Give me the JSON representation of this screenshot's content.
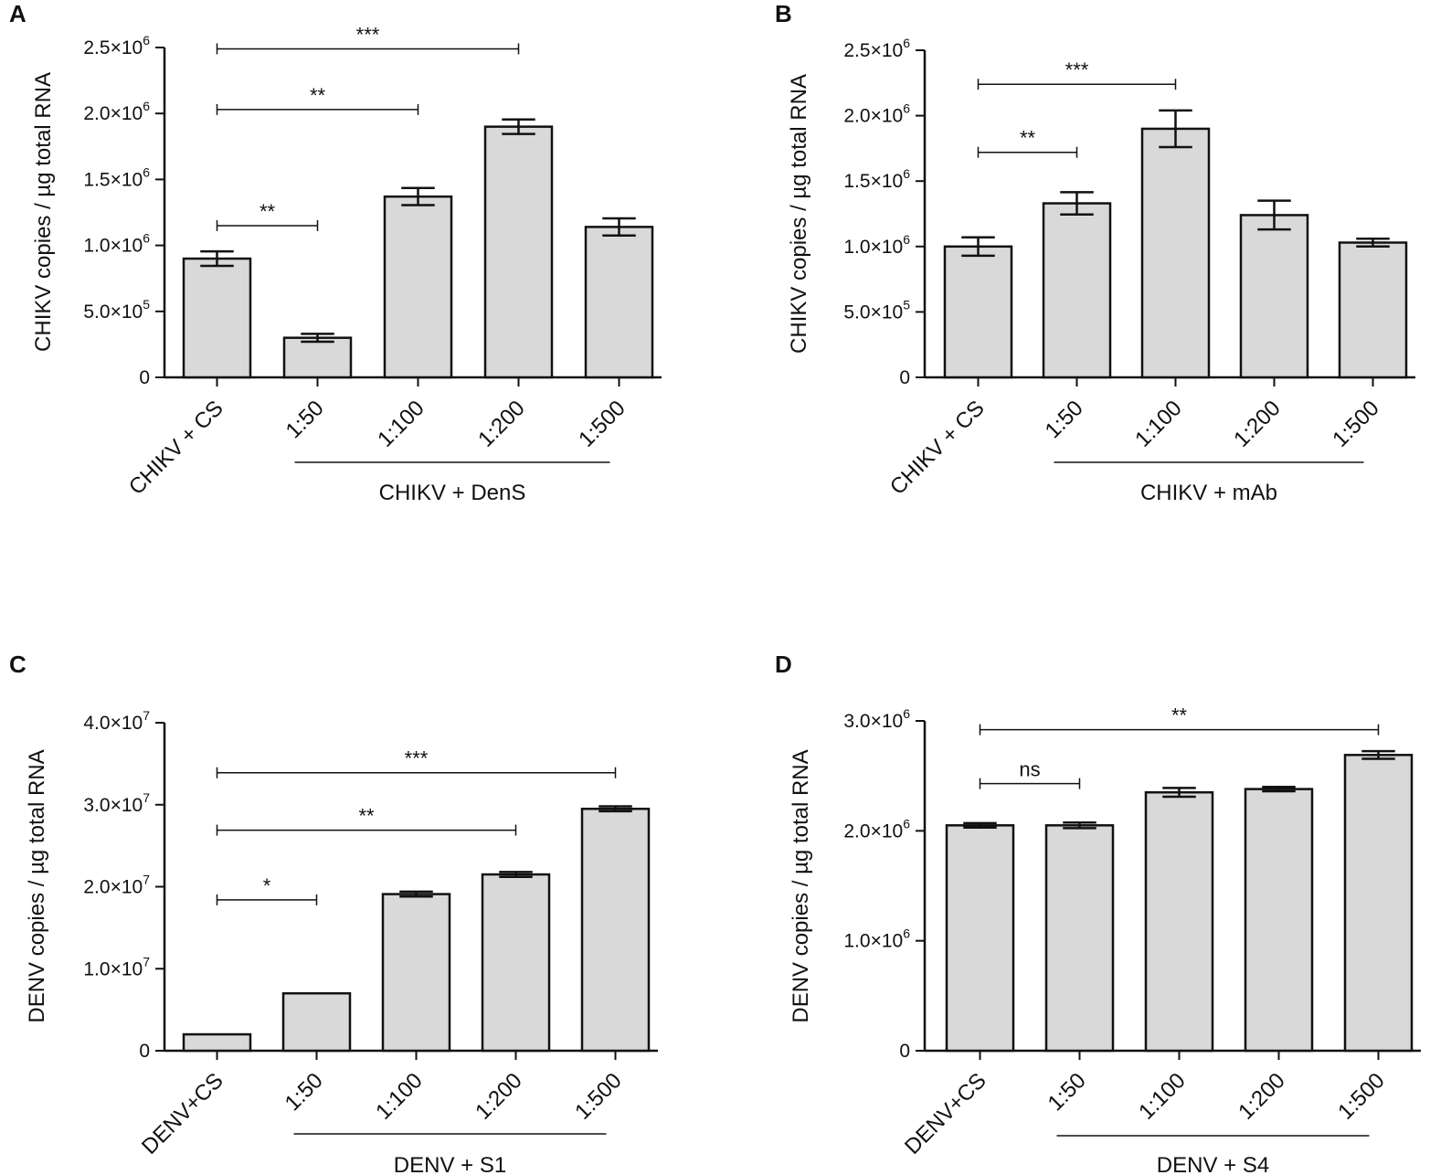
{
  "chart_data": [
    {
      "panel": "A",
      "type": "bar",
      "ylabel": "CHIKV copies / µg total RNA",
      "ylim": [
        0,
        2500000
      ],
      "yticks": [
        {
          "value": 0,
          "mant": "0",
          "exp": ""
        },
        {
          "value": 500000,
          "mant": "5.0×10",
          "exp": "5"
        },
        {
          "value": 1000000,
          "mant": "1.0×10",
          "exp": "6"
        },
        {
          "value": 1500000,
          "mant": "1.5×10",
          "exp": "6"
        },
        {
          "value": 2000000,
          "mant": "2.0×10",
          "exp": "6"
        },
        {
          "value": 2500000,
          "mant": "2.5×10",
          "exp": "6"
        }
      ],
      "categories": [
        "CHIKV + CS",
        "1:50",
        "1:100",
        "1:200",
        "1:500"
      ],
      "values": [
        900000,
        300000,
        1370000,
        1900000,
        1140000
      ],
      "errors": [
        55000,
        30000,
        65000,
        55000,
        65000
      ],
      "group_label": "CHIKV + DenS",
      "group_range": [
        1,
        4
      ],
      "significance": [
        {
          "from": 0,
          "to": 1,
          "label": "**",
          "y": 1150000
        },
        {
          "from": 0,
          "to": 2,
          "label": "**",
          "y": 2030000
        },
        {
          "from": 0,
          "to": 3,
          "label": "***",
          "y": 2490000
        }
      ]
    },
    {
      "panel": "B",
      "type": "bar",
      "ylabel": "CHIKV copies / µg total RNA",
      "ylim": [
        0,
        2500000
      ],
      "yticks": [
        {
          "value": 0,
          "mant": "0",
          "exp": ""
        },
        {
          "value": 500000,
          "mant": "5.0×10",
          "exp": "5"
        },
        {
          "value": 1000000,
          "mant": "1.0×10",
          "exp": "6"
        },
        {
          "value": 1500000,
          "mant": "1.5×10",
          "exp": "6"
        },
        {
          "value": 2000000,
          "mant": "2.0×10",
          "exp": "6"
        },
        {
          "value": 2500000,
          "mant": "2.5×10",
          "exp": "6"
        }
      ],
      "categories": [
        "CHIKV + CS",
        "1:50",
        "1:100",
        "1:200",
        "1:500"
      ],
      "values": [
        1000000,
        1330000,
        1900000,
        1240000,
        1030000
      ],
      "errors": [
        70000,
        85000,
        140000,
        110000,
        30000
      ],
      "group_label": "CHIKV + mAb",
      "group_range": [
        1,
        4
      ],
      "significance": [
        {
          "from": 0,
          "to": 1,
          "label": "**",
          "y": 1720000
        },
        {
          "from": 0,
          "to": 2,
          "label": "***",
          "y": 2240000
        }
      ]
    },
    {
      "panel": "C",
      "type": "bar",
      "ylabel": "DENV copies / µg total RNA",
      "ylim": [
        0,
        40000000
      ],
      "yticks": [
        {
          "value": 0,
          "mant": "0",
          "exp": ""
        },
        {
          "value": 10000000,
          "mant": "1.0×10",
          "exp": "7"
        },
        {
          "value": 20000000,
          "mant": "2.0×10",
          "exp": "7"
        },
        {
          "value": 30000000,
          "mant": "3.0×10",
          "exp": "7"
        },
        {
          "value": 40000000,
          "mant": "4.0×10",
          "exp": "7"
        }
      ],
      "categories": [
        "DENV+CS",
        "1:50",
        "1:100",
        "1:200",
        "1:500"
      ],
      "values": [
        2000000,
        7000000,
        19100000,
        21500000,
        29500000
      ],
      "errors": [
        0,
        0,
        300000,
        300000,
        300000
      ],
      "group_label": "DENV + S1",
      "group_range": [
        1,
        4
      ],
      "significance": [
        {
          "from": 0,
          "to": 1,
          "label": "*",
          "y": 18400000
        },
        {
          "from": 0,
          "to": 3,
          "label": "**",
          "y": 26900000
        },
        {
          "from": 0,
          "to": 4,
          "label": "***",
          "y": 33900000
        }
      ]
    },
    {
      "panel": "D",
      "type": "bar",
      "ylabel": "DENV copies / µg total RNA",
      "ylim": [
        0,
        3000000
      ],
      "yticks": [
        {
          "value": 0,
          "mant": "0",
          "exp": ""
        },
        {
          "value": 1000000,
          "mant": "1.0×10",
          "exp": "6"
        },
        {
          "value": 2000000,
          "mant": "2.0×10",
          "exp": "6"
        },
        {
          "value": 3000000,
          "mant": "3.0×10",
          "exp": "6"
        }
      ],
      "categories": [
        "DENV+CS",
        "1:50",
        "1:100",
        "1:200",
        "1:500"
      ],
      "values": [
        2050000,
        2050000,
        2350000,
        2380000,
        2690000
      ],
      "errors": [
        20000,
        25000,
        40000,
        20000,
        35000
      ],
      "group_label": "DENV + S4",
      "group_range": [
        1,
        4
      ],
      "significance": [
        {
          "from": 0,
          "to": 1,
          "label": "ns",
          "y": 2430000
        },
        {
          "from": 0,
          "to": 4,
          "label": "**",
          "y": 2920000
        }
      ]
    }
  ],
  "colors": {
    "bar_fill": "#d9d9d9",
    "stroke": "#111111"
  }
}
